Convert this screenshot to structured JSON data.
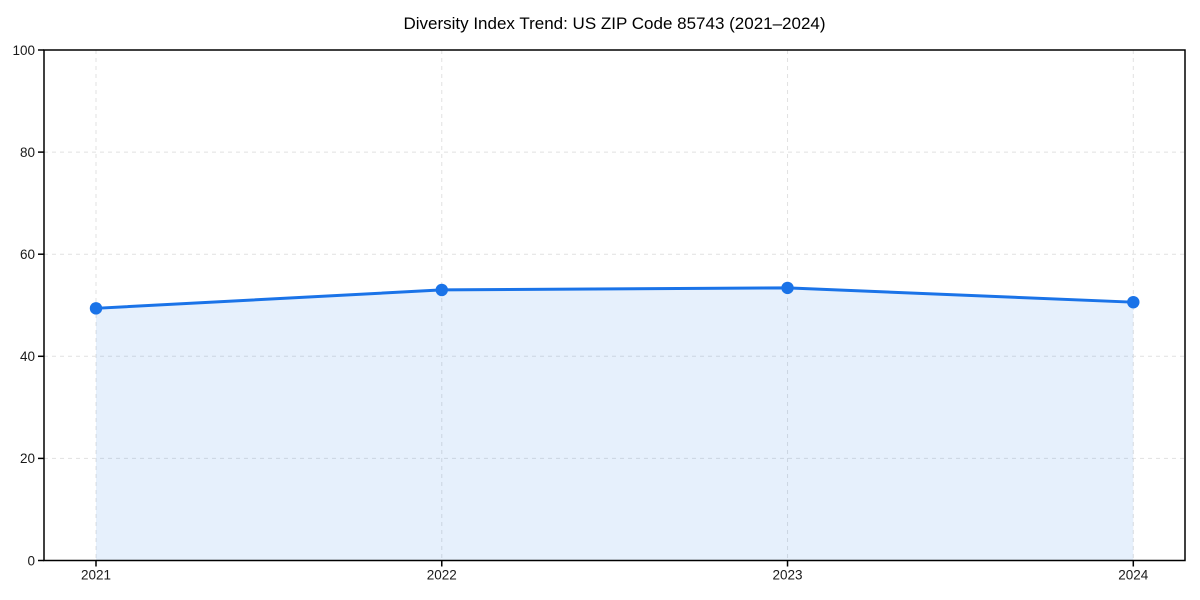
{
  "chart_data": {
    "type": "line",
    "title": "Diversity Index Trend: US ZIP Code 85743 (2021–2024)",
    "x": [
      2021,
      2022,
      2023,
      2024
    ],
    "categories": [
      "2021",
      "2022",
      "2023",
      "2024"
    ],
    "series": [
      {
        "name": "Diversity Index",
        "values": [
          49.4,
          53.0,
          53.4,
          50.6
        ]
      }
    ],
    "xlabel": "",
    "ylabel": "",
    "ylim": [
      0,
      100
    ],
    "yticks": [
      0,
      20,
      40,
      60,
      80,
      100
    ],
    "grid": true,
    "grid_style": "dashed",
    "legend_position": "none",
    "marker": "circle",
    "fill_area": true,
    "colors": {
      "line": "#1a73e8",
      "marker": "#1a73e8",
      "area_fill": "rgba(26,115,232,0.11)",
      "grid": "#e1e1e1",
      "axis": "#000000",
      "tick_text": "#1a1a1a",
      "title_text": "#000000",
      "background": "#ffffff"
    }
  }
}
